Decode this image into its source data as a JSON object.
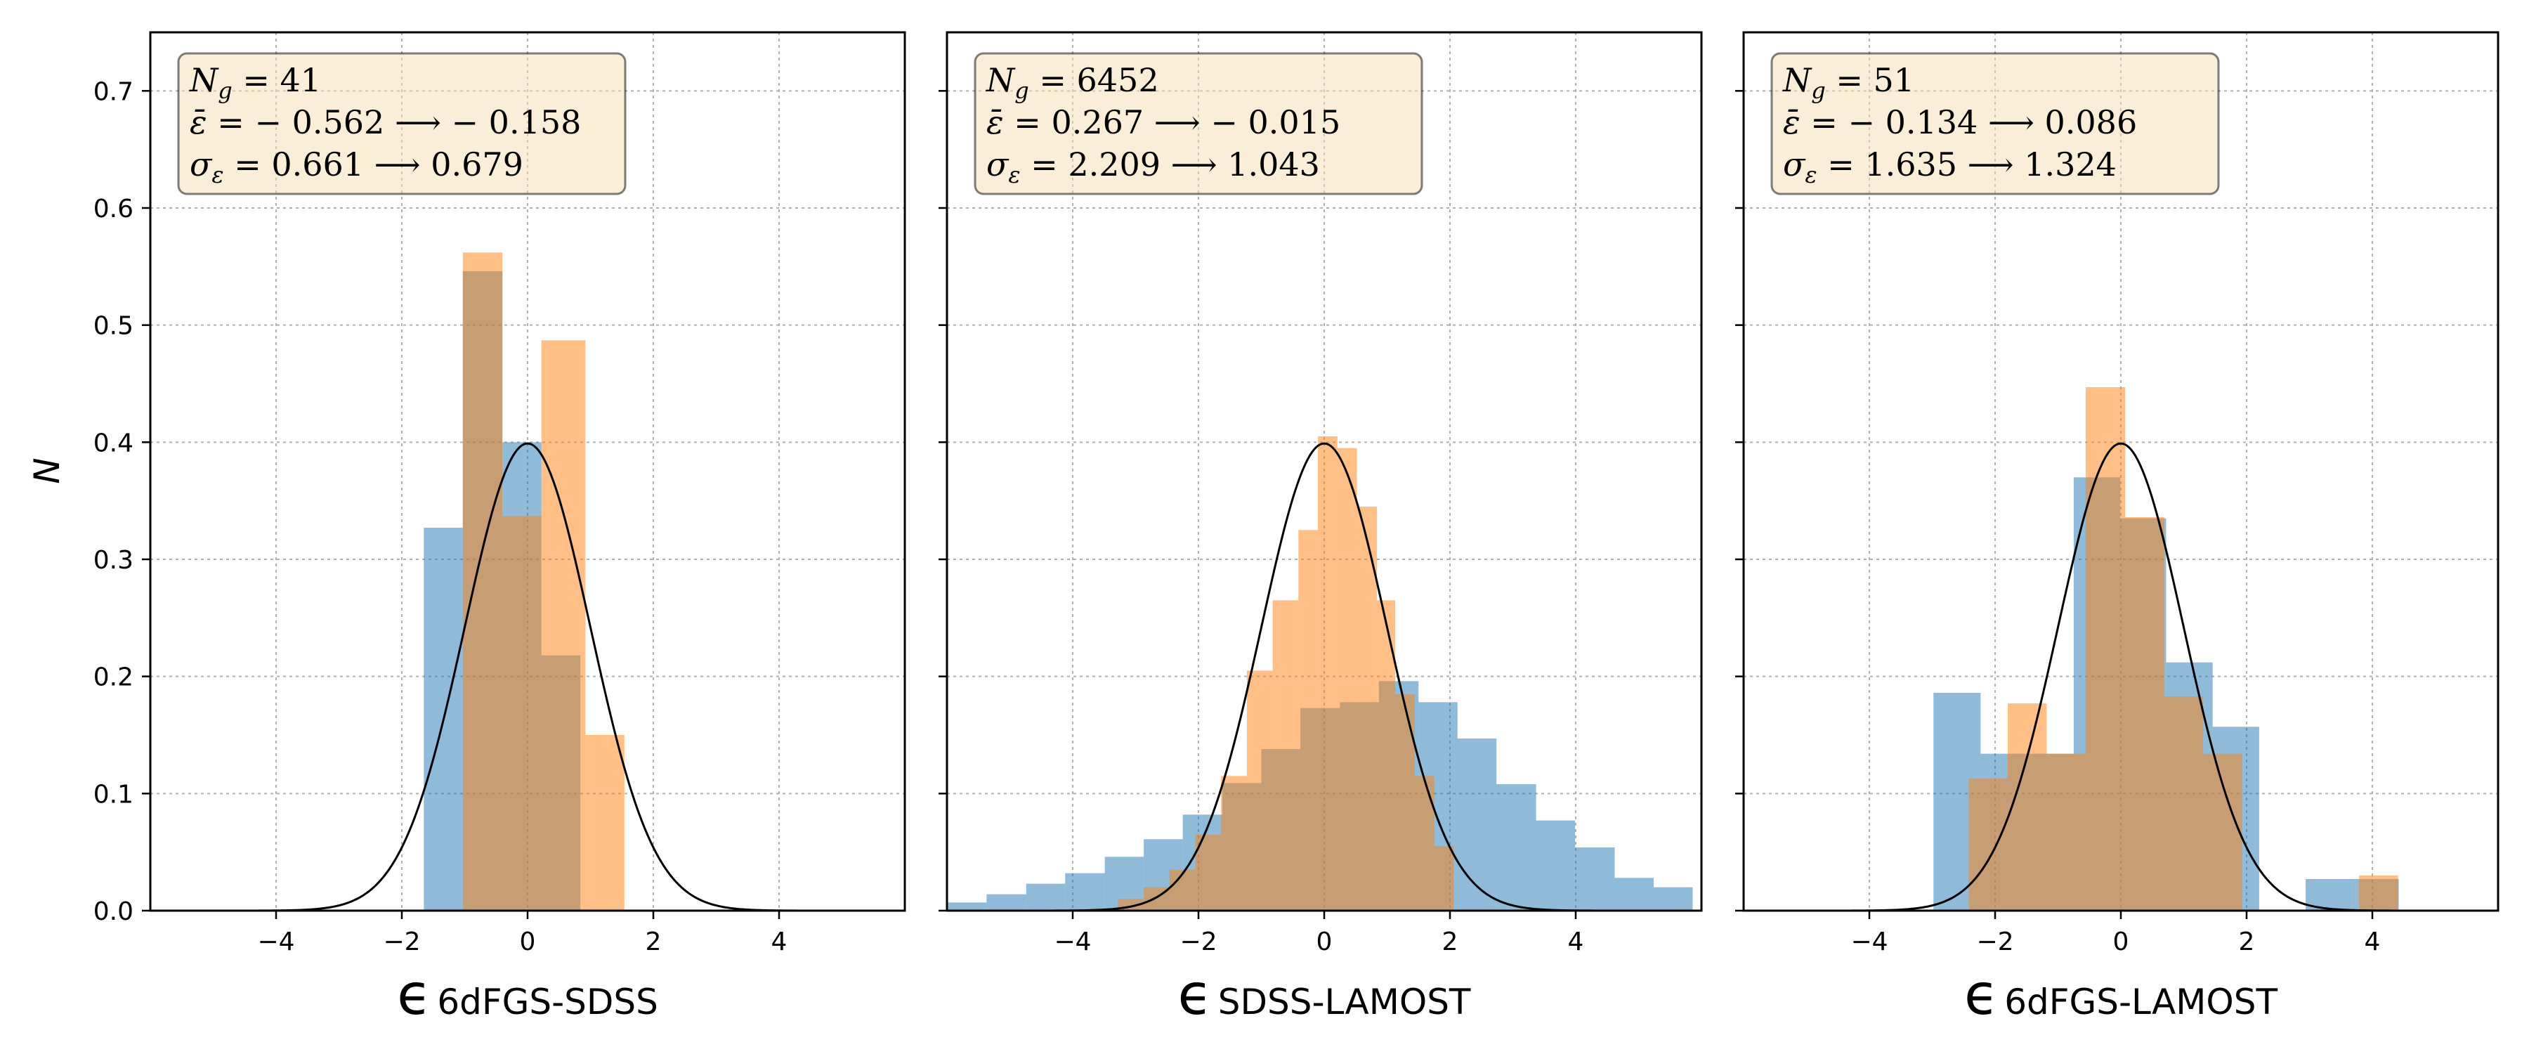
{
  "figure": {
    "ylabel": "N",
    "ylim": [
      0,
      0.75
    ],
    "yticks": [
      "0.0",
      "0.1",
      "0.2",
      "0.3",
      "0.4",
      "0.5",
      "0.6",
      "0.7"
    ],
    "xticks": [
      "−4",
      "−2",
      "0",
      "2",
      "4"
    ],
    "colors": {
      "before": "#1f77b4",
      "after": "#ff7f0e",
      "gaussian": "#000000",
      "textbox": "#f5deb3",
      "grid": "#b0b0b0"
    }
  },
  "chart_data": [
    {
      "type": "bar",
      "xlabel_symbol": "ϵ",
      "xlabel_sub": "6dFGS-SDSS",
      "xlim": [
        -6,
        6
      ],
      "grid": true,
      "annotation": {
        "line1_pre": "N",
        "line1_sub": "g",
        "line1_rest": " = 41",
        "line2_pre": "ε̄",
        "line2_rest": " = − 0.562 ⟶ − 0.158",
        "line3_pre": "σ",
        "line3_sub": "ε",
        "line3_rest": " = 0.661 ⟶ 0.679"
      },
      "series": [
        {
          "edges": [
            -1.65,
            -1.03,
            -0.4,
            0.22,
            0.84
          ],
          "values": [
            0.327,
            0.546,
            0.4,
            0.218
          ]
        },
        {
          "edges": [
            -1.03,
            -0.4,
            0.22,
            0.92,
            1.54
          ],
          "values": [
            0.562,
            0.337,
            0.487,
            0.15
          ]
        }
      ]
    },
    {
      "type": "bar",
      "xlabel_symbol": "ϵ",
      "xlabel_sub": "SDSS-LAMOST",
      "xlim": [
        -6,
        6
      ],
      "grid": true,
      "annotation": {
        "line1_pre": "N",
        "line1_sub": "g",
        "line1_rest": " = 6452",
        "line2_pre": "ε̄",
        "line2_rest": " = 0.267 ⟶ − 0.015",
        "line3_pre": "σ",
        "line3_sub": "ε",
        "line3_rest": " = 2.209 ⟶ 1.043"
      },
      "series": [
        {
          "edges": [
            -5.99,
            -5.37,
            -4.74,
            -4.12,
            -3.49,
            -2.87,
            -2.25,
            -1.62,
            -1.0,
            -0.38,
            0.25,
            0.87,
            1.5,
            2.12,
            2.74,
            3.37,
            3.99,
            4.62,
            5.24,
            5.86
          ],
          "values": [
            0.007,
            0.014,
            0.023,
            0.032,
            0.046,
            0.061,
            0.082,
            0.109,
            0.138,
            0.173,
            0.178,
            0.196,
            0.178,
            0.147,
            0.108,
            0.077,
            0.054,
            0.028,
            0.02
          ]
        },
        {
          "edges": [
            -3.69,
            -3.28,
            -2.87,
            -2.46,
            -2.05,
            -1.64,
            -1.23,
            -0.82,
            -0.41,
            -0.1,
            0.21,
            0.52,
            0.84,
            1.13,
            1.44,
            1.75,
            2.06
          ],
          "values": [
            0.002,
            0.01,
            0.02,
            0.035,
            0.065,
            0.115,
            0.205,
            0.265,
            0.325,
            0.405,
            0.395,
            0.345,
            0.265,
            0.185,
            0.115,
            0.055
          ]
        }
      ]
    },
    {
      "type": "bar",
      "xlabel_symbol": "ϵ",
      "xlabel_sub": "6dFGS-LAMOST",
      "xlim": [
        -6,
        6
      ],
      "grid": true,
      "annotation": {
        "line1_pre": "N",
        "line1_sub": "g",
        "line1_rest": " = 51",
        "line2_pre": "ε̄",
        "line2_rest": " = − 0.134 ⟶ 0.086",
        "line3_pre": "σ",
        "line3_sub": "ε",
        "line3_rest": " = 1.635 ⟶ 1.324"
      },
      "series": [
        {
          "edges": [
            -2.98,
            -2.23,
            -1.49,
            -0.75,
            -0.01,
            0.72,
            1.46,
            2.2,
            2.94,
            3.68,
            4.42
          ],
          "values": [
            0.186,
            0.134,
            0.134,
            0.37,
            0.335,
            0.212,
            0.157,
            0.0,
            0.027,
            0.027
          ]
        },
        {
          "edges": [
            -2.42,
            -1.8,
            -1.18,
            -0.56,
            0.07,
            0.69,
            1.31,
            1.93,
            2.55,
            3.17,
            3.79,
            4.41
          ],
          "values": [
            0.113,
            0.177,
            0.134,
            0.447,
            0.336,
            0.183,
            0.134,
            0.0,
            0.0,
            0.0,
            0.03
          ]
        }
      ]
    }
  ]
}
